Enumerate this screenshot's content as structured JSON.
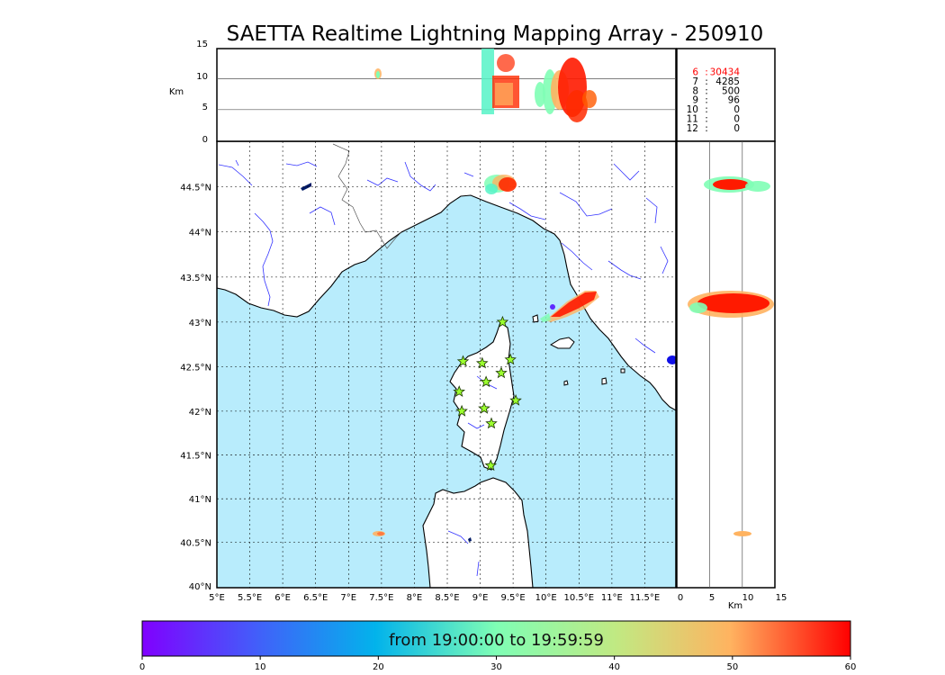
{
  "title": "SAETTA Realtime Lightning Mapping Array - 250910",
  "units": {
    "km_left": "Km",
    "km_bottom": "Km"
  },
  "altitude_ticks": [
    "15",
    "10",
    "5",
    "0"
  ],
  "lat_ticks": [
    "44.5°N",
    "44°N",
    "43.5°N",
    "43°N",
    "42.5°N",
    "42°N",
    "41.5°N",
    "41°N",
    "40.5°N",
    "40°N"
  ],
  "lon_ticks": [
    "5°E",
    "5.5°E",
    "6°E",
    "6.5°E",
    "7°E",
    "7.5°E",
    "8°E",
    "8.5°E",
    "9°E",
    "9.5°E",
    "10°E",
    "10.5°E",
    "11°E",
    "11.5°E"
  ],
  "side_km_ticks": [
    "0",
    "5",
    "10",
    "15"
  ],
  "stations_table": [
    {
      "n": "6",
      "count": "30434",
      "highlight": true
    },
    {
      "n": "7",
      "count": "4285",
      "highlight": false
    },
    {
      "n": "8",
      "count": "500",
      "highlight": false
    },
    {
      "n": "9",
      "count": "96",
      "highlight": false
    },
    {
      "n": "10",
      "count": "0",
      "highlight": false
    },
    {
      "n": "11",
      "count": "0",
      "highlight": false
    },
    {
      "n": "12",
      "count": "0",
      "highlight": false
    }
  ],
  "colorbar": {
    "caption": "from 19:00:00 to 19:59:59",
    "ticks": [
      "0",
      "10",
      "20",
      "30",
      "40",
      "50",
      "60"
    ],
    "range_minutes": [
      0,
      60
    ],
    "colormap": "rainbow"
  },
  "colors": {
    "sea": "#b8ecfc",
    "land": "#ffffff",
    "rivers": "#3333ff",
    "highlight": "#ff0000",
    "station": "#9bff2e"
  },
  "stations_lonlat": [
    [
      9.34,
      43.0
    ],
    [
      8.74,
      42.56
    ],
    [
      9.03,
      42.54
    ],
    [
      9.46,
      42.58
    ],
    [
      9.09,
      42.33
    ],
    [
      9.32,
      42.43
    ],
    [
      8.68,
      42.22
    ],
    [
      9.54,
      42.12
    ],
    [
      8.72,
      42.0
    ],
    [
      9.06,
      42.03
    ],
    [
      9.17,
      41.86
    ],
    [
      9.16,
      41.38
    ]
  ]
}
